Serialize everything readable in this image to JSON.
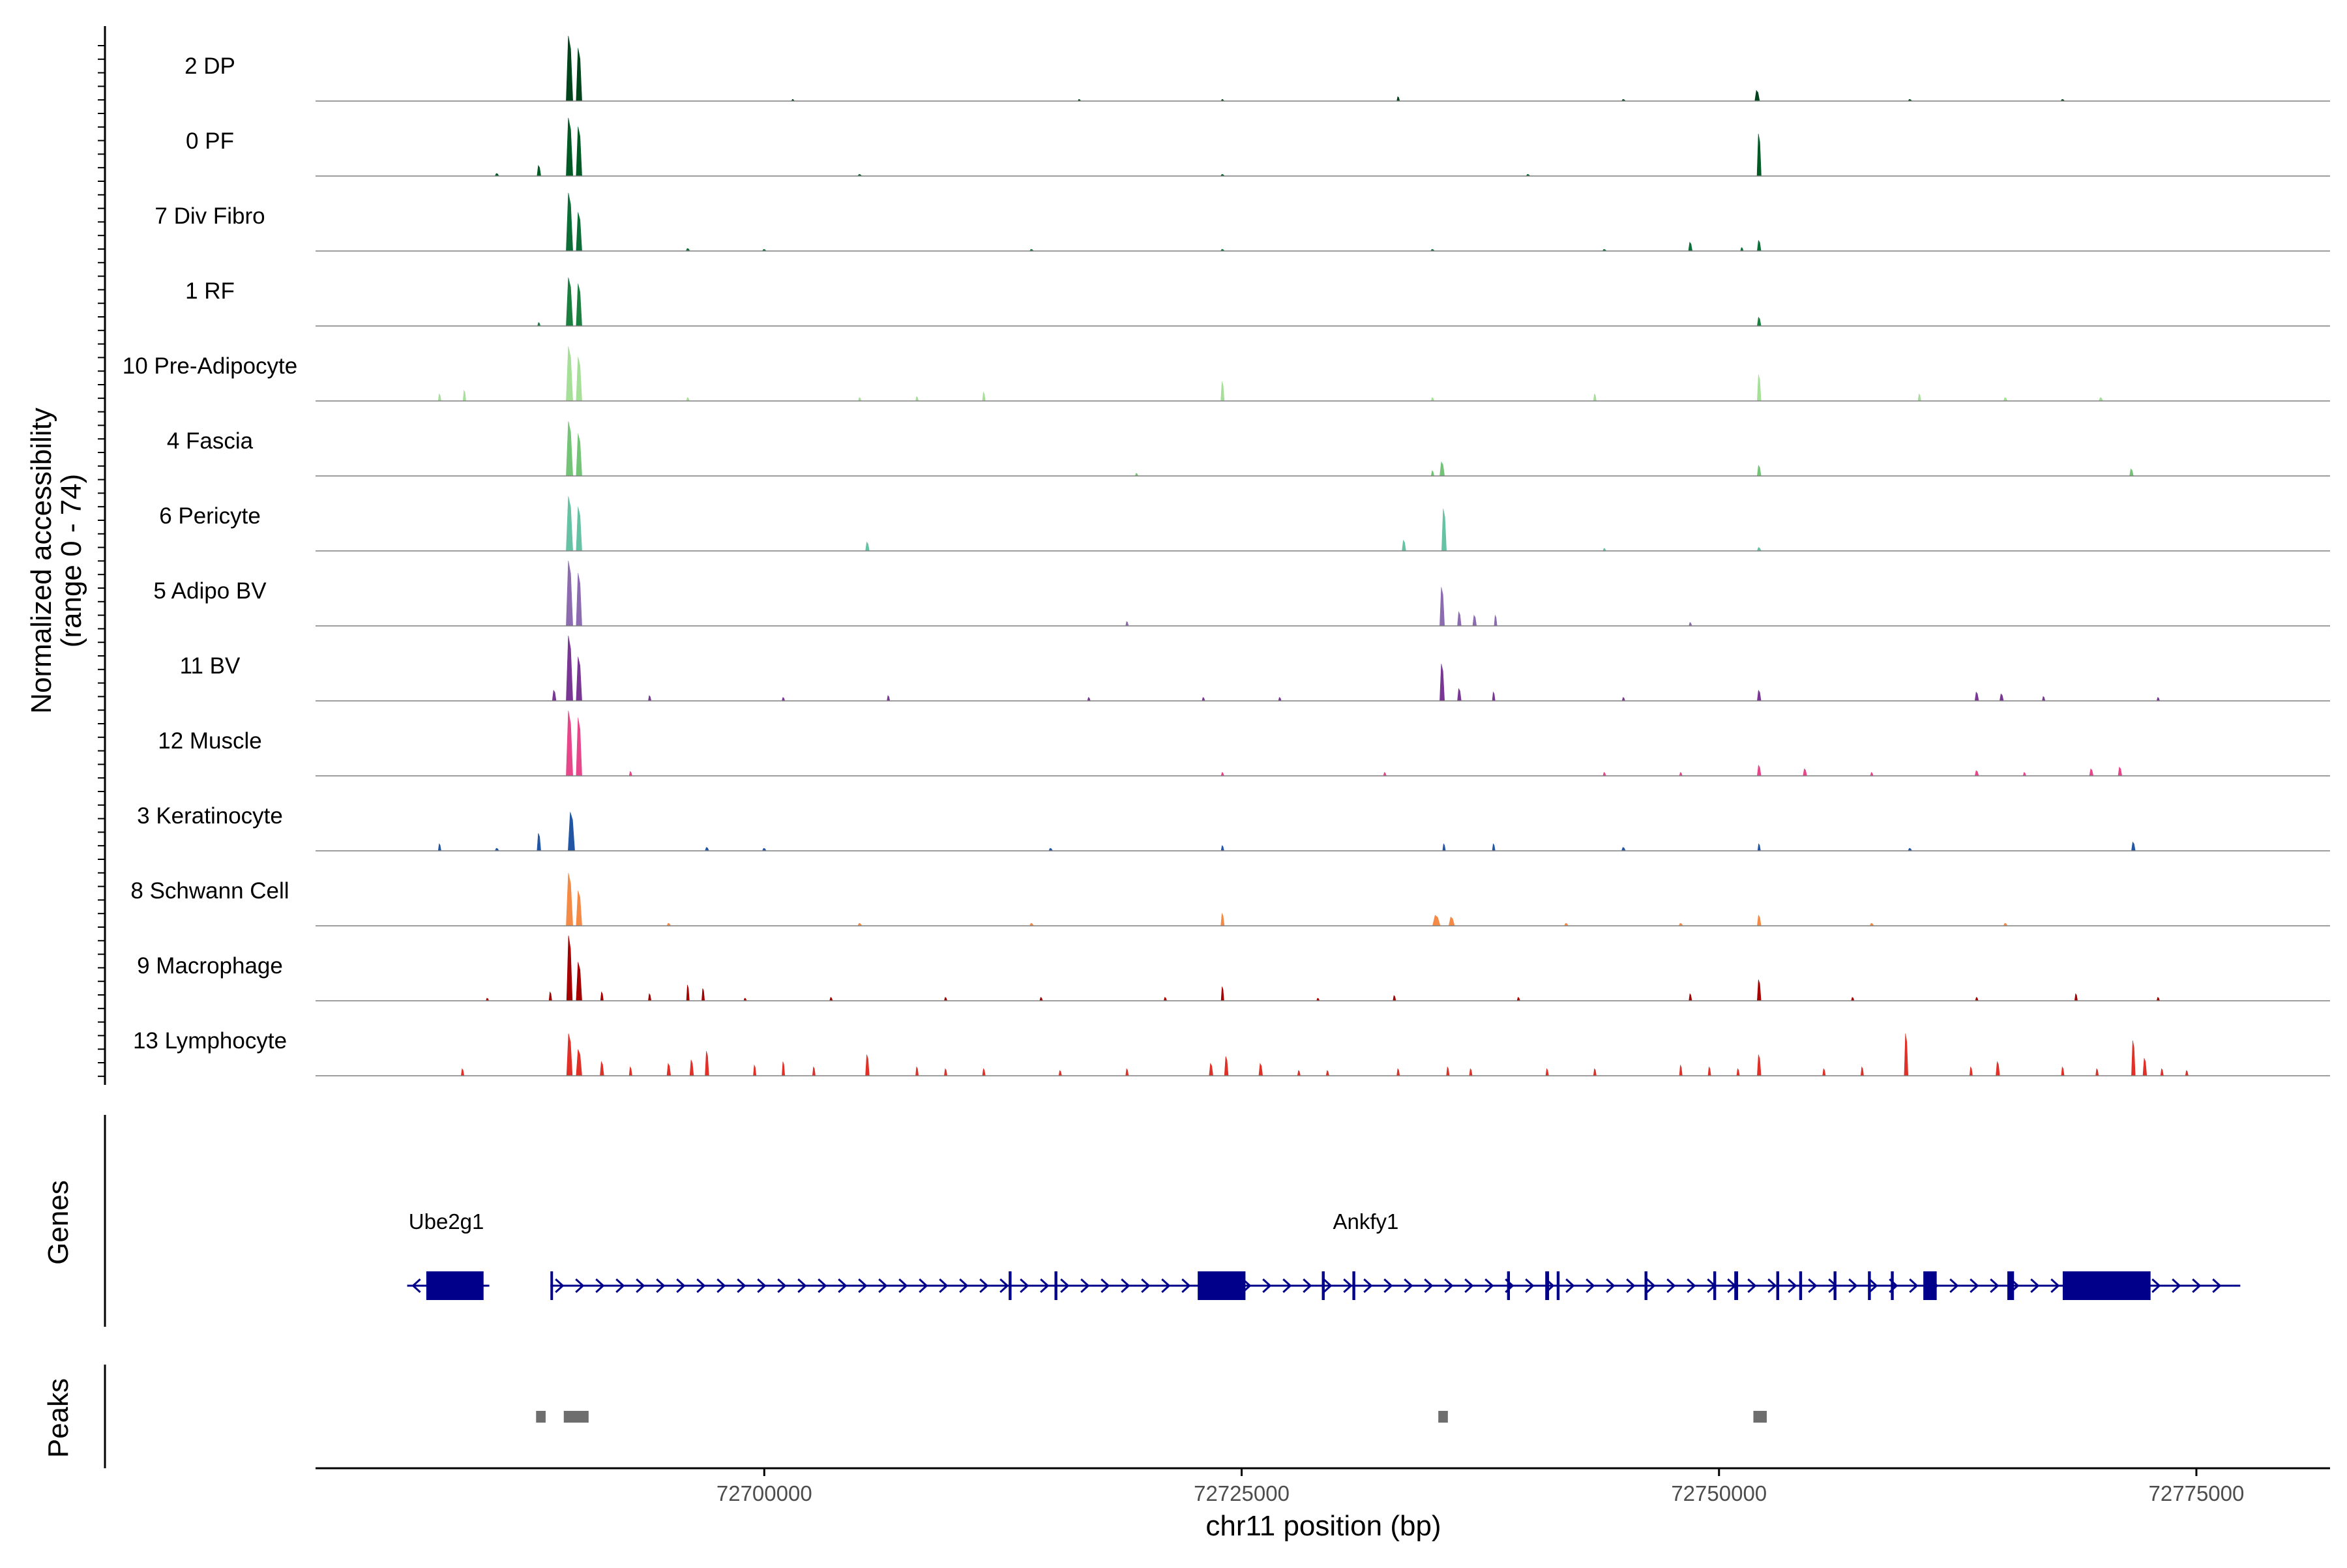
{
  "chart_data": {
    "type": "area",
    "chromosome": "chr11",
    "xlabel": "chr11 position (bp)",
    "ylabel_line1": "Normalized accessibility",
    "ylabel_line2": "(range 0 - 74)",
    "xlim": [
      72676500,
      72782000
    ],
    "ylim": [
      0,
      74
    ],
    "x_ticks": [
      72700000,
      72725000,
      72750000,
      72775000
    ],
    "x_tick_labels": [
      "72700000",
      "72725000",
      "72750000",
      "72775000"
    ],
    "track_labels": {
      "genes": "Genes",
      "peaks": "Peaks"
    },
    "series": [
      {
        "name": "2 DP",
        "color": "#00441b",
        "peaks": [
          [
            72689800,
            74,
            350
          ],
          [
            72690300,
            60,
            300
          ],
          [
            72752000,
            12,
            250
          ],
          [
            72733200,
            5,
            150
          ],
          [
            72701500,
            2,
            150
          ],
          [
            72716500,
            2,
            150
          ],
          [
            72724000,
            2,
            150
          ],
          [
            72745000,
            2,
            200
          ],
          [
            72760000,
            2,
            200
          ],
          [
            72768000,
            2,
            200
          ]
        ]
      },
      {
        "name": "0 PF",
        "color": "#005a23",
        "peaks": [
          [
            72689800,
            66,
            350
          ],
          [
            72690300,
            56,
            300
          ],
          [
            72752100,
            48,
            220
          ],
          [
            72688200,
            12,
            200
          ],
          [
            72686000,
            3,
            200
          ],
          [
            72705000,
            2,
            200
          ],
          [
            72724000,
            2,
            200
          ],
          [
            72740000,
            2,
            200
          ]
        ]
      },
      {
        "name": "7 Div Fibro",
        "color": "#0b6e36",
        "peaks": [
          [
            72689800,
            66,
            350
          ],
          [
            72690300,
            44,
            300
          ],
          [
            72748500,
            10,
            200
          ],
          [
            72752100,
            12,
            200
          ],
          [
            72751200,
            4,
            150
          ],
          [
            72696000,
            3,
            200
          ],
          [
            72700000,
            2,
            200
          ],
          [
            72714000,
            2,
            200
          ],
          [
            72724000,
            2,
            200
          ],
          [
            72735000,
            2,
            200
          ],
          [
            72744000,
            2,
            200
          ]
        ]
      },
      {
        "name": "1 RF",
        "color": "#1b7f3f",
        "peaks": [
          [
            72689800,
            55,
            350
          ],
          [
            72690300,
            48,
            300
          ],
          [
            72752100,
            10,
            200
          ],
          [
            72688200,
            4,
            150
          ]
        ]
      },
      {
        "name": "10 Pre-Adipocyte",
        "color": "#a6df98",
        "peaks": [
          [
            72689800,
            62,
            350
          ],
          [
            72690300,
            50,
            300
          ],
          [
            72752100,
            30,
            200
          ],
          [
            72724000,
            22,
            180
          ],
          [
            72683000,
            8,
            150
          ],
          [
            72684300,
            12,
            150
          ],
          [
            72711500,
            10,
            150
          ],
          [
            72743500,
            8,
            150
          ],
          [
            72760500,
            8,
            150
          ],
          [
            72696000,
            4,
            150
          ],
          [
            72705000,
            4,
            150
          ],
          [
            72708000,
            5,
            150
          ],
          [
            72735000,
            4,
            150
          ],
          [
            72765000,
            4,
            200
          ],
          [
            72770000,
            4,
            200
          ]
        ]
      },
      {
        "name": "4 Fascia",
        "color": "#73c476",
        "peaks": [
          [
            72689800,
            62,
            350
          ],
          [
            72690300,
            48,
            300
          ],
          [
            72735500,
            16,
            250
          ],
          [
            72752100,
            12,
            200
          ],
          [
            72771600,
            8,
            200
          ],
          [
            72719500,
            3,
            150
          ],
          [
            72735000,
            6,
            150
          ]
        ]
      },
      {
        "name": "6 Pericyte",
        "color": "#66c2a4",
        "peaks": [
          [
            72689800,
            62,
            350
          ],
          [
            72690300,
            50,
            300
          ],
          [
            72735600,
            48,
            250
          ],
          [
            72733500,
            12,
            200
          ],
          [
            72705400,
            10,
            200
          ],
          [
            72752100,
            4,
            200
          ],
          [
            72744000,
            3,
            150
          ]
        ]
      },
      {
        "name": "5 Adipo BV",
        "color": "#8c6bb1",
        "peaks": [
          [
            72689800,
            74,
            350
          ],
          [
            72690300,
            60,
            300
          ],
          [
            72735500,
            44,
            250
          ],
          [
            72736400,
            16,
            200
          ],
          [
            72737200,
            12,
            200
          ],
          [
            72738300,
            12,
            150
          ],
          [
            72719000,
            5,
            150
          ],
          [
            72748500,
            4,
            150
          ]
        ]
      },
      {
        "name": "11 BV",
        "color": "#7a3694",
        "peaks": [
          [
            72689800,
            74,
            350
          ],
          [
            72690300,
            50,
            300
          ],
          [
            72735500,
            42,
            250
          ],
          [
            72736400,
            14,
            200
          ],
          [
            72738200,
            10,
            150
          ],
          [
            72689000,
            12,
            200
          ],
          [
            72752100,
            12,
            200
          ],
          [
            72763500,
            10,
            200
          ],
          [
            72764800,
            8,
            200
          ],
          [
            72694000,
            6,
            150
          ],
          [
            72701000,
            4,
            150
          ],
          [
            72706500,
            6,
            150
          ],
          [
            72717000,
            4,
            150
          ],
          [
            72723000,
            4,
            150
          ],
          [
            72727000,
            4,
            150
          ],
          [
            72745000,
            4,
            150
          ],
          [
            72767000,
            5,
            150
          ],
          [
            72773000,
            4,
            150
          ]
        ]
      },
      {
        "name": "12 Muscle",
        "color": "#e7468a",
        "peaks": [
          [
            72689800,
            74,
            350
          ],
          [
            72690300,
            66,
            300
          ],
          [
            72752100,
            12,
            200
          ],
          [
            72754500,
            8,
            200
          ],
          [
            72763500,
            6,
            200
          ],
          [
            72769500,
            8,
            200
          ],
          [
            72771000,
            10,
            200
          ],
          [
            72693000,
            5,
            150
          ],
          [
            72724000,
            4,
            150
          ],
          [
            72732500,
            4,
            150
          ],
          [
            72744000,
            4,
            150
          ],
          [
            72748000,
            4,
            150
          ],
          [
            72758000,
            4,
            150
          ],
          [
            72766000,
            4,
            150
          ]
        ]
      },
      {
        "name": "3 Keratinocyte",
        "color": "#2256a5",
        "peaks": [
          [
            72689900,
            44,
            350
          ],
          [
            72688200,
            20,
            200
          ],
          [
            72683000,
            8,
            150
          ],
          [
            72724000,
            6,
            150
          ],
          [
            72735600,
            8,
            150
          ],
          [
            72738200,
            8,
            150
          ],
          [
            72752100,
            8,
            150
          ],
          [
            72771700,
            10,
            200
          ],
          [
            72686000,
            3,
            200
          ],
          [
            72697000,
            4,
            200
          ],
          [
            72700000,
            3,
            200
          ],
          [
            72715000,
            3,
            200
          ],
          [
            72745000,
            4,
            200
          ],
          [
            72760000,
            3,
            200
          ]
        ]
      },
      {
        "name": "8 Schwann Cell",
        "color": "#f48a46",
        "peaks": [
          [
            72689800,
            60,
            350
          ],
          [
            72690300,
            40,
            300
          ],
          [
            72735200,
            12,
            400
          ],
          [
            72736000,
            10,
            300
          ],
          [
            72724000,
            14,
            180
          ],
          [
            72752100,
            12,
            200
          ],
          [
            72695000,
            3,
            200
          ],
          [
            72705000,
            3,
            200
          ],
          [
            72714000,
            3,
            200
          ],
          [
            72742000,
            3,
            200
          ],
          [
            72748000,
            3,
            200
          ],
          [
            72758000,
            3,
            200
          ],
          [
            72765000,
            3,
            200
          ]
        ]
      },
      {
        "name": "9 Macrophage",
        "color": "#a40000",
        "peaks": [
          [
            72689800,
            74,
            300
          ],
          [
            72690300,
            44,
            300
          ],
          [
            72688800,
            10,
            150
          ],
          [
            72691500,
            10,
            150
          ],
          [
            72696000,
            18,
            150
          ],
          [
            72696800,
            14,
            150
          ],
          [
            72694000,
            8,
            150
          ],
          [
            72724000,
            16,
            150
          ],
          [
            72752100,
            24,
            200
          ],
          [
            72748500,
            8,
            150
          ],
          [
            72768700,
            8,
            150
          ],
          [
            72733000,
            6,
            150
          ],
          [
            72703500,
            4,
            150
          ],
          [
            72709500,
            4,
            150
          ],
          [
            72714500,
            4,
            150
          ],
          [
            72721000,
            4,
            150
          ],
          [
            72739500,
            4,
            150
          ],
          [
            72757000,
            4,
            150
          ],
          [
            72763500,
            4,
            150
          ],
          [
            72773000,
            4,
            150
          ],
          [
            72685500,
            3,
            150
          ],
          [
            72699000,
            3,
            150
          ],
          [
            72729000,
            3,
            150
          ]
        ]
      },
      {
        "name": "13 Lymphocyte",
        "color": "#e03027",
        "peaks": [
          [
            72689800,
            48,
            300
          ],
          [
            72690300,
            30,
            300
          ],
          [
            72691500,
            16,
            200
          ],
          [
            72697000,
            28,
            200
          ],
          [
            72696200,
            18,
            200
          ],
          [
            72695000,
            14,
            200
          ],
          [
            72705400,
            24,
            200
          ],
          [
            72752100,
            24,
            200
          ],
          [
            72759800,
            48,
            200
          ],
          [
            72771700,
            40,
            200
          ],
          [
            72772300,
            20,
            200
          ],
          [
            72724200,
            22,
            200
          ],
          [
            72723400,
            14,
            200
          ],
          [
            72726000,
            14,
            200
          ],
          [
            72764600,
            16,
            200
          ],
          [
            72684200,
            8,
            150
          ],
          [
            72693000,
            10,
            150
          ],
          [
            72699500,
            12,
            150
          ],
          [
            72701000,
            16,
            150
          ],
          [
            72702600,
            10,
            150
          ],
          [
            72708000,
            10,
            150
          ],
          [
            72709500,
            8,
            150
          ],
          [
            72711500,
            8,
            150
          ],
          [
            72719000,
            8,
            150
          ],
          [
            72728000,
            6,
            150
          ],
          [
            72733200,
            8,
            150
          ],
          [
            72735800,
            10,
            150
          ],
          [
            72737000,
            8,
            150
          ],
          [
            72741000,
            8,
            150
          ],
          [
            72743500,
            8,
            150
          ],
          [
            72748000,
            12,
            150
          ],
          [
            72749500,
            10,
            150
          ],
          [
            72751000,
            8,
            150
          ],
          [
            72755500,
            8,
            150
          ],
          [
            72757500,
            10,
            150
          ],
          [
            72763200,
            10,
            150
          ],
          [
            72768000,
            10,
            150
          ],
          [
            72769800,
            8,
            150
          ],
          [
            72773200,
            8,
            150
          ],
          [
            72774500,
            6,
            150
          ],
          [
            72729500,
            6,
            150
          ],
          [
            72715500,
            6,
            150
          ]
        ]
      }
    ],
    "genes": [
      {
        "name": "Ube2g1",
        "strand": "-",
        "start": 72681300,
        "end": 72685600,
        "exons": [
          [
            72682300,
            72685300
          ]
        ]
      },
      {
        "name": "Ankfy1",
        "strand": "+",
        "start": 72688800,
        "end": 72777300,
        "exons": [
          [
            72688800,
            72688900
          ],
          [
            72712800,
            72712950
          ],
          [
            72715200,
            72715350
          ],
          [
            72722700,
            72725200
          ],
          [
            72729200,
            72729350
          ],
          [
            72730800,
            72730950
          ],
          [
            72738900,
            72739050
          ],
          [
            72740900,
            72741100
          ],
          [
            72741500,
            72741650
          ],
          [
            72746100,
            72746250
          ],
          [
            72749700,
            72749850
          ],
          [
            72750800,
            72751000
          ],
          [
            72753000,
            72753150
          ],
          [
            72754200,
            72754350
          ],
          [
            72756000,
            72756150
          ],
          [
            72757800,
            72757950
          ],
          [
            72759000,
            72759150
          ],
          [
            72760700,
            72761400
          ],
          [
            72765100,
            72765450
          ],
          [
            72768000,
            72772600
          ]
        ]
      }
    ],
    "peak_regions": [
      [
        72688050,
        72688550
      ],
      [
        72689500,
        72690800
      ],
      [
        72735300,
        72735800
      ],
      [
        72751800,
        72752500
      ]
    ]
  }
}
